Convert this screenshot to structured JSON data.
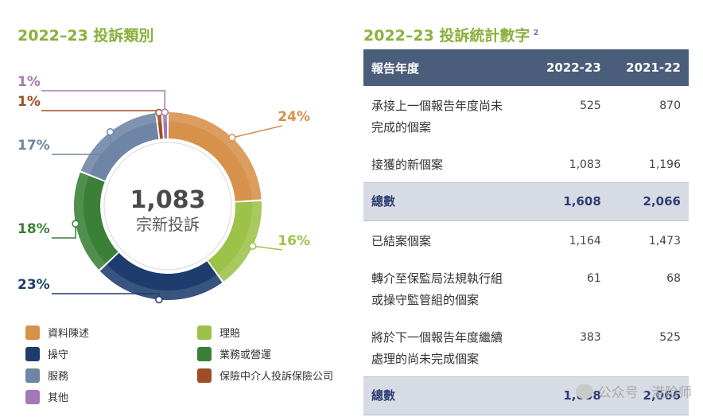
{
  "left_title": "2022–23 投訴類別",
  "right_title": "2022–23 投訴統計數字",
  "right_title_note": "2",
  "center_value": "1,083",
  "center_label": "宗新投訴",
  "chart_data": {
    "type": "pie",
    "title": "2022–23 投訴類別",
    "slices": [
      {
        "name": "資料陳述",
        "value": 24,
        "label": "24%",
        "color": "#d6914a"
      },
      {
        "name": "理賠",
        "value": 16,
        "label": "16%",
        "color": "#9cc24a"
      },
      {
        "name": "操守",
        "value": 23,
        "label": "23%",
        "color": "#1e3d6e"
      },
      {
        "name": "業務或營運",
        "value": 18,
        "label": "18%",
        "color": "#3a8037"
      },
      {
        "name": "服務",
        "value": 17,
        "label": "17%",
        "color": "#6e85a6"
      },
      {
        "name": "保險中介人投訴保險公司",
        "value": 1,
        "label": "1%",
        "color": "#9e4e22"
      },
      {
        "name": "其他",
        "value": 1,
        "label": "1%",
        "color": "#a478b6"
      }
    ]
  },
  "legend": [
    {
      "label": "資料陳述",
      "color": "#d6914a"
    },
    {
      "label": "理賠",
      "color": "#9cc24a"
    },
    {
      "label": "操守",
      "color": "#1e3d6e"
    },
    {
      "label": "業務或營運",
      "color": "#3a8037"
    },
    {
      "label": "服務",
      "color": "#6e85a6"
    },
    {
      "label": "保險中介人投訴保險公司",
      "color": "#9e4e22"
    },
    {
      "label": "其他",
      "color": "#a478b6"
    }
  ],
  "table": {
    "header": [
      "報告年度",
      "2022-23",
      "2021-22"
    ],
    "rows": [
      {
        "label": "承接上一個報告年度尚未完成的個案",
        "v1": "525",
        "v2": "870",
        "total": false
      },
      {
        "label": "接獲的新個案",
        "v1": "1,083",
        "v2": "1,196",
        "total": false
      },
      {
        "label": "總數",
        "v1": "1,608",
        "v2": "2,066",
        "total": true
      },
      {
        "label": "已結案個案",
        "v1": "1,164",
        "v2": "1,473",
        "total": false
      },
      {
        "label": "轉介至保監局法規執行組或操守監管組的個案",
        "v1": "61",
        "v2": "68",
        "total": false
      },
      {
        "label": "將於下一個報告年度繼續處理的尚未完成個案",
        "v1": "383",
        "v2": "525",
        "total": false
      },
      {
        "label": "總數",
        "v1": "1,608",
        "v2": "2,066",
        "total": true
      }
    ]
  },
  "watermark": "公众号 · 港险师"
}
